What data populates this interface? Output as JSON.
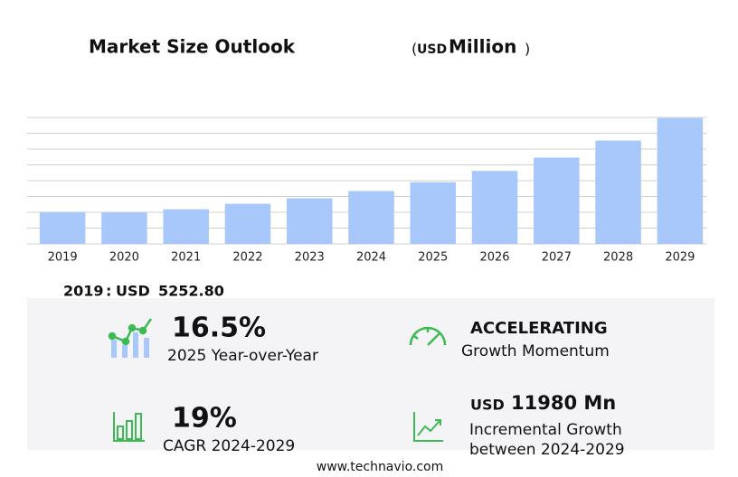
{
  "chart_data": {
    "type": "bar",
    "title": "Market Size Outlook",
    "unit": {
      "open": "(",
      "currency": "USD",
      "name": "Million",
      "close": ")"
    },
    "categories": [
      "2019",
      "2020",
      "2021",
      "2022",
      "2023",
      "2024",
      "2025",
      "2026",
      "2027",
      "2028",
      "2029"
    ],
    "values": [
      5252.8,
      5200,
      5700,
      6600,
      7500,
      8700,
      10150,
      12000,
      14200,
      17000,
      20700
    ],
    "color": "#a8c8fb",
    "ylim": [
      0,
      20800
    ],
    "yticks": [
      0,
      2600,
      5200,
      7800,
      10400,
      13000,
      15600,
      18200,
      20800
    ],
    "grid": true
  },
  "base": {
    "year": "2019",
    "sep": ":",
    "currency": "USD",
    "value": "5252.80"
  },
  "stats": [
    {
      "value": "16.5%",
      "label": "2025 Year-over-Year"
    },
    {
      "value": "ACCELERATING",
      "label": "Growth Momentum"
    },
    {
      "value": "19%",
      "label": "CAGR 2024-2029"
    },
    {
      "prefix": "USD",
      "value": "11980 Mn",
      "label": [
        "Incremental Growth",
        "between 2024-2029"
      ]
    }
  ],
  "footer": "www.technavio.com"
}
